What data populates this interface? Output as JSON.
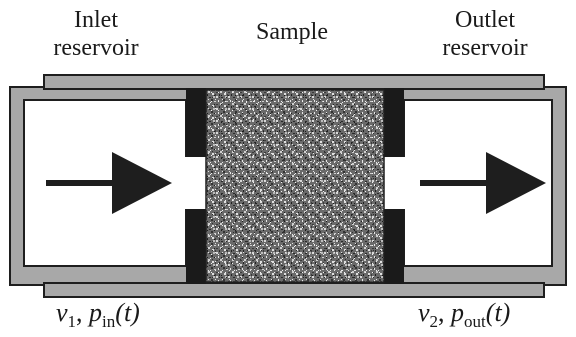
{
  "labels": {
    "inlet_title_line1": "Inlet",
    "inlet_title_line2": "reservoir",
    "sample_title": "Sample",
    "outlet_title_line1": "Outlet",
    "outlet_title_line2": "reservoir"
  },
  "inlet_vars": {
    "volume_symbol": "v",
    "volume_index": "1",
    "separator": ", ",
    "pressure_symbol": "p",
    "pressure_sub": "in",
    "arg": "(t)"
  },
  "outlet_vars": {
    "volume_symbol": "v",
    "volume_index": "2",
    "separator": ", ",
    "pressure_symbol": "p",
    "pressure_sub": "out",
    "arg": "(t)"
  },
  "colors": {
    "housing_fill": "#a8a8a8",
    "outline": "#1e1e1e",
    "reservoir_fill": "#ffffff",
    "seal": "#1a1a1a",
    "arrow": "#1e1e1e",
    "sample_dark": "#2a2a2a",
    "sample_light": "#cfcfcf"
  }
}
